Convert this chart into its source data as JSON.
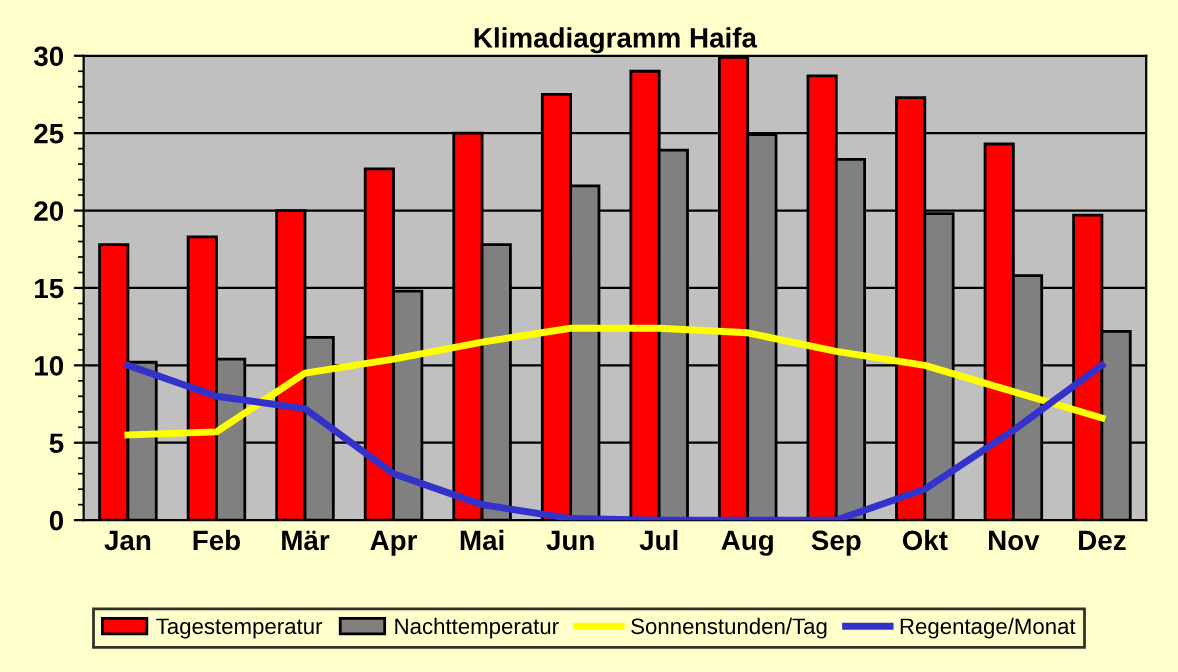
{
  "chart_data": {
    "type": "bar",
    "title": "Klimadiagramm Haifa",
    "categories": [
      "Jan",
      "Feb",
      "Mär",
      "Apr",
      "Mai",
      "Jun",
      "Jul",
      "Aug",
      "Sep",
      "Okt",
      "Nov",
      "Dez"
    ],
    "series": [
      {
        "name": "Tagestemperatur",
        "color": "#ff0000",
        "values": [
          17.8,
          18.3,
          20,
          22.7,
          25,
          27.5,
          29,
          29.9,
          28.7,
          27.3,
          24.3,
          19.7
        ]
      },
      {
        "name": "Nachttemperatur",
        "color": "#808080",
        "values": [
          10.2,
          10.4,
          11.8,
          14.8,
          17.8,
          21.6,
          23.9,
          24.9,
          23.3,
          19.8,
          15.8,
          12.2
        ]
      },
      {
        "name": "Sonnenstunden/Tag",
        "type": "line",
        "color": "#ffff00",
        "values": [
          5.5,
          5.7,
          9.5,
          10.4,
          11.5,
          12.4,
          12.4,
          12.1,
          10.9,
          10.0,
          8.3,
          6.6
        ]
      },
      {
        "name": "Regentage/Monat",
        "type": "line",
        "color": "#3333cc",
        "values": [
          10,
          8.0,
          7.2,
          3.0,
          1.0,
          0.1,
          0,
          0,
          0,
          2,
          5.8,
          10
        ]
      }
    ],
    "ylim": [
      0,
      30
    ],
    "yticks": [
      0,
      5,
      10,
      15,
      20,
      25,
      30
    ],
    "grid": "y",
    "legend": "bottom"
  }
}
